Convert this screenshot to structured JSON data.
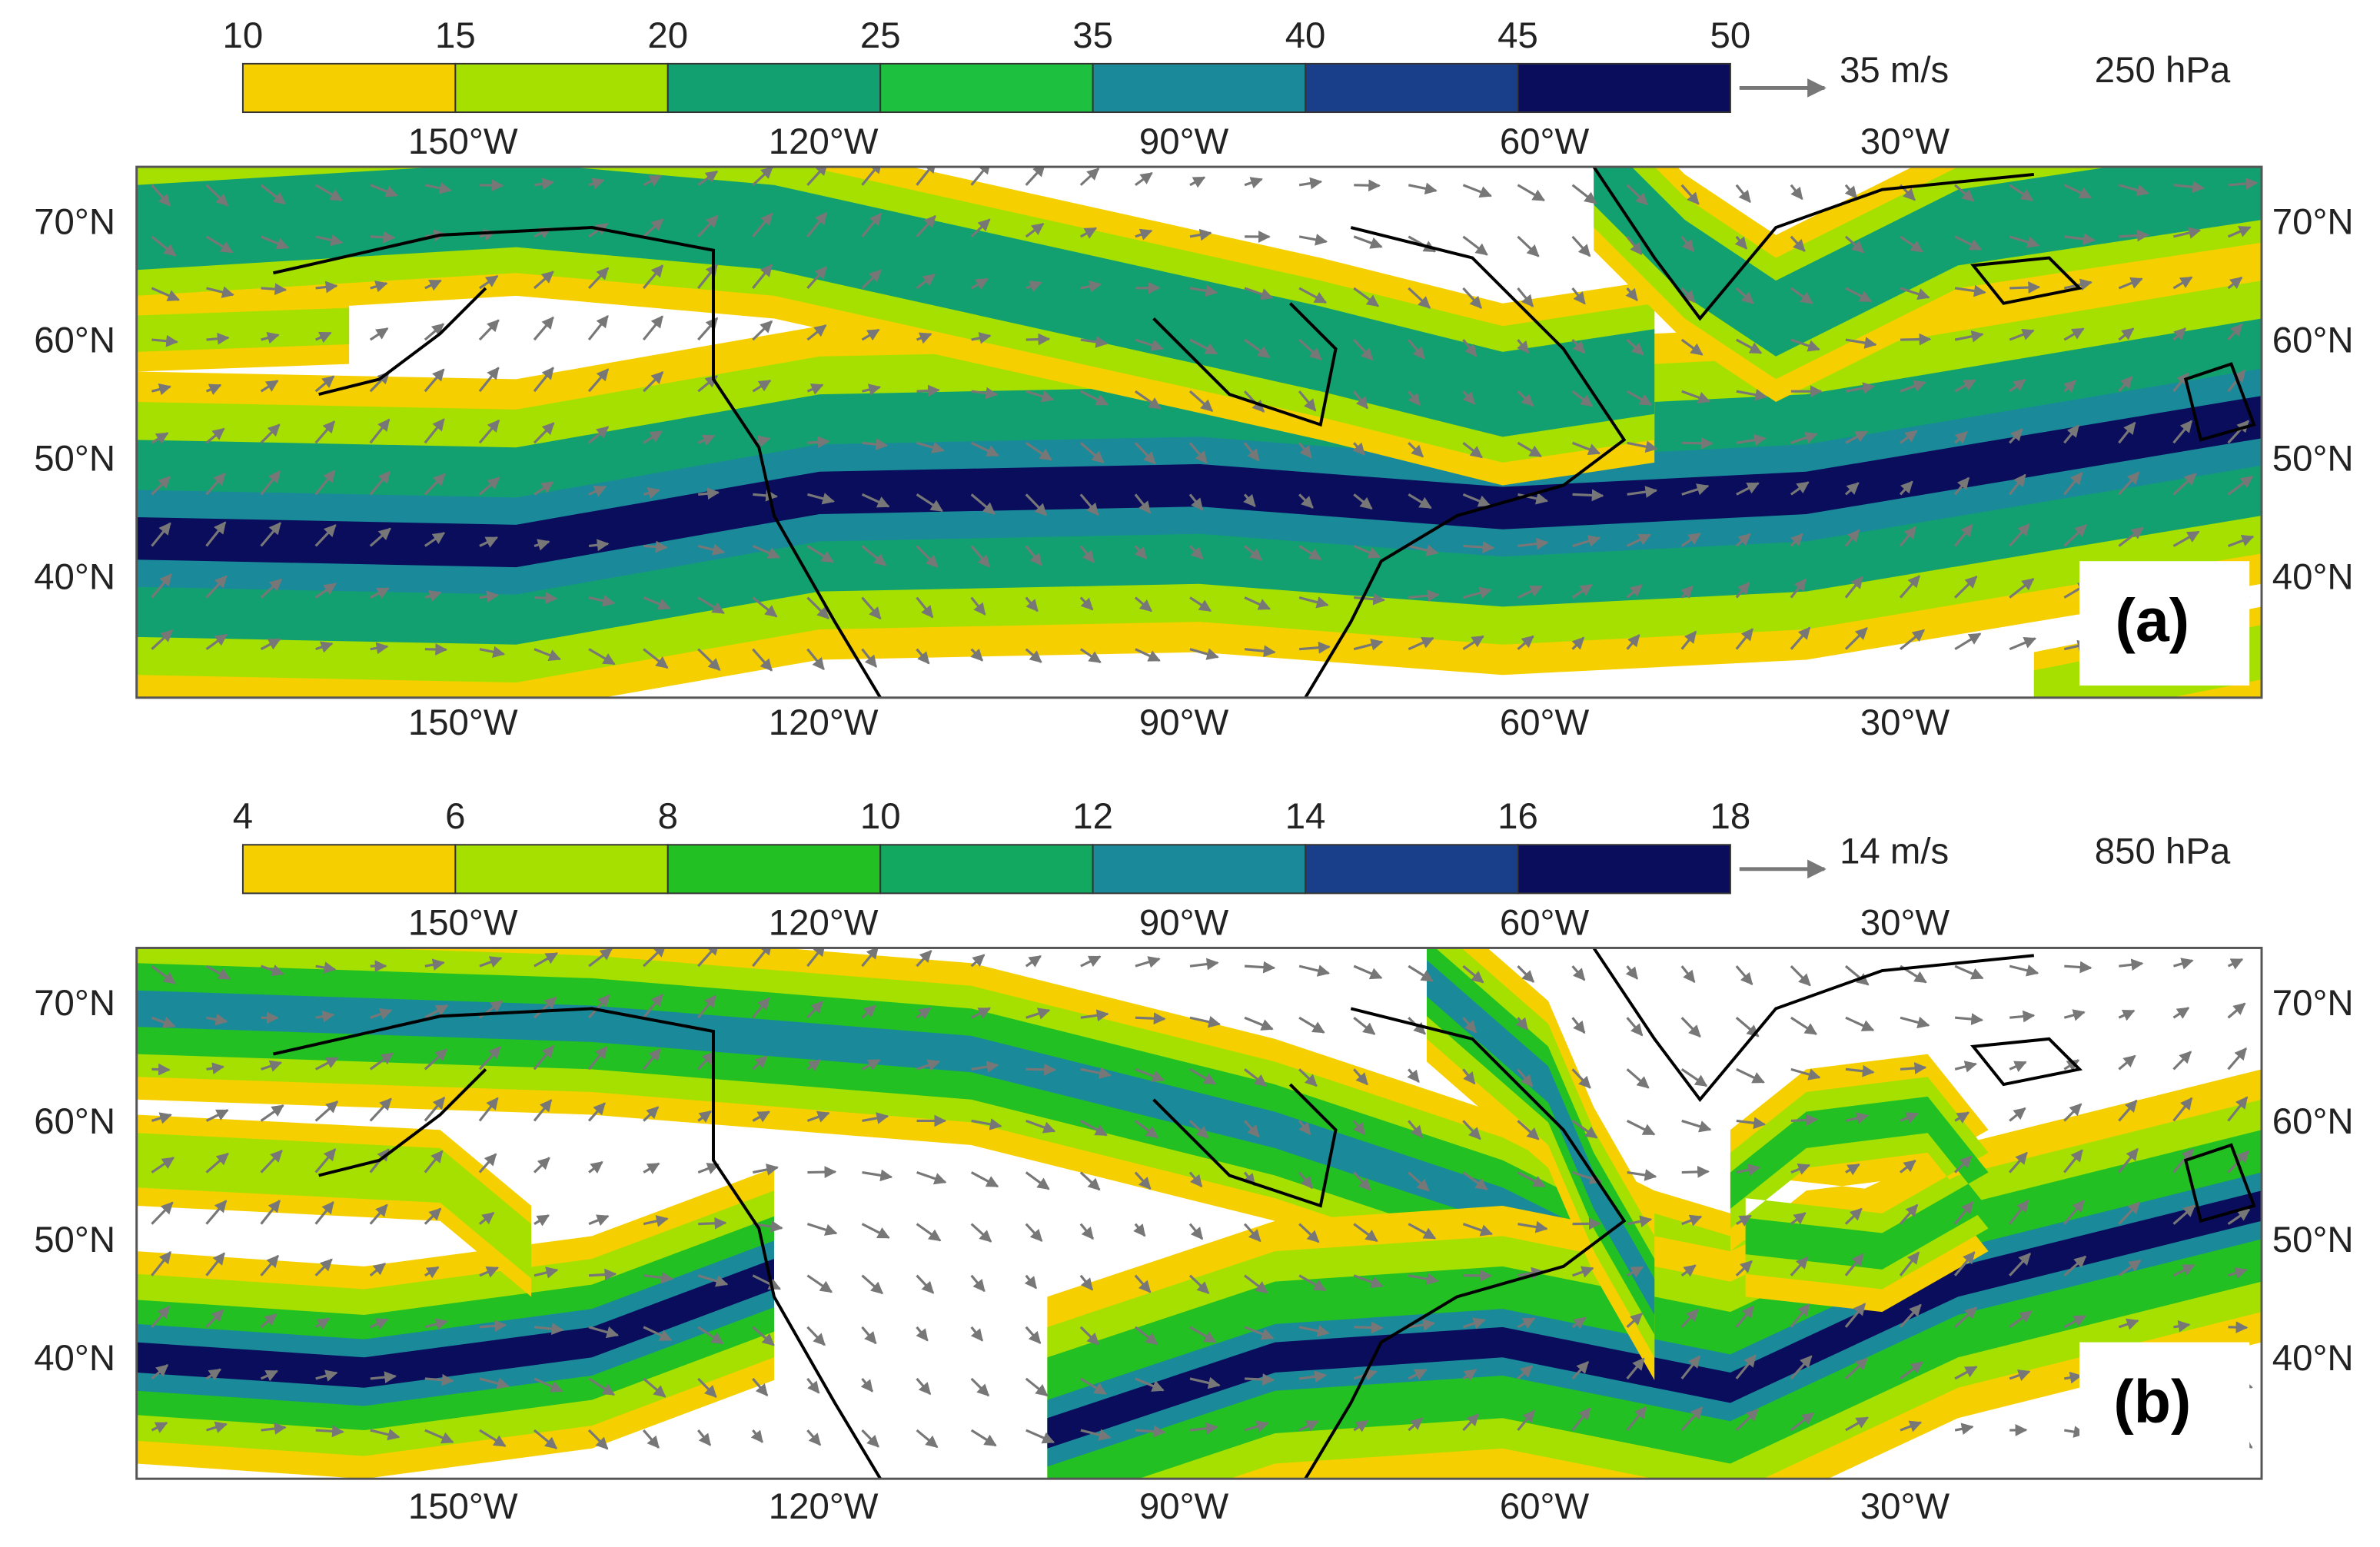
{
  "panels": [
    {
      "label": "(a)",
      "level": "250 hPa",
      "reference_vector": "35 m/s",
      "colorbar": {
        "ticks": [
          10,
          15,
          20,
          25,
          35,
          40,
          45,
          50
        ],
        "colors": [
          "#f6cf00",
          "#a6e000",
          "#12a070",
          "#1ec040",
          "#1a8a9a",
          "#1a3f8a",
          "#0a0c5c"
        ]
      },
      "lon_labels": [
        "150°W",
        "120°W",
        "90°W",
        "60°W",
        "30°W"
      ],
      "lat_labels": [
        "70°N",
        "60°N",
        "50°N",
        "40°N"
      ]
    },
    {
      "label": "(b)",
      "level": "850 hPa",
      "reference_vector": "14 m/s",
      "colorbar": {
        "ticks": [
          4,
          6,
          8,
          10,
          12,
          14,
          16,
          18
        ],
        "colors": [
          "#f6cf00",
          "#a6e000",
          "#22c022",
          "#12a860",
          "#1a8a9a",
          "#1a3f8a",
          "#0a0c5c"
        ]
      },
      "lon_labels": [
        "150°W",
        "120°W",
        "90°W",
        "60°W",
        "30°W"
      ],
      "lat_labels": [
        "70°N",
        "60°N",
        "50°N",
        "40°N"
      ]
    }
  ]
}
